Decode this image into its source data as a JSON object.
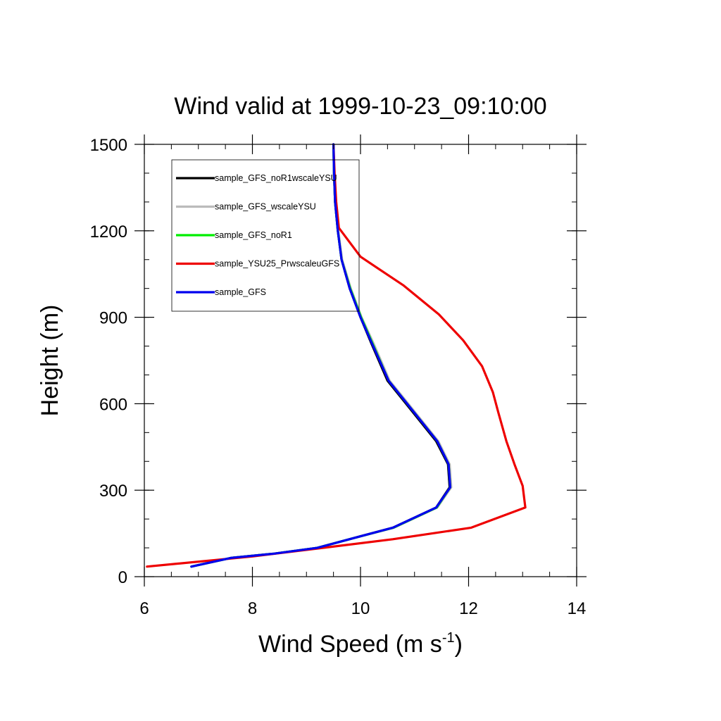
{
  "chart_data": {
    "type": "line",
    "title": "Wind valid at 1999-10-23_09:10:00",
    "xlabel": "Wind Speed (m s",
    "xlabel_superscript": "-1",
    "xlabel_suffix": ")",
    "ylabel": "Height (m)",
    "xlim": [
      6,
      14
    ],
    "ylim": [
      0,
      1500
    ],
    "x_ticks": [
      6,
      8,
      10,
      12,
      14
    ],
    "x_tick_labels": [
      "6",
      "8",
      "10",
      "12",
      "14"
    ],
    "y_ticks": [
      0,
      300,
      600,
      900,
      1200,
      1500
    ],
    "y_tick_labels": [
      "0",
      "300",
      "600",
      "900",
      "1200",
      "1500"
    ],
    "legend_position": "top-left",
    "series": [
      {
        "name": "sample_GFS_noR1wscaleYSU",
        "color": "#000000",
        "points": [
          [
            6.87,
            35
          ],
          [
            7.6,
            65
          ],
          [
            8.4,
            80
          ],
          [
            9.2,
            100
          ],
          [
            9.9,
            135
          ],
          [
            10.6,
            170
          ],
          [
            11.4,
            240
          ],
          [
            11.65,
            310
          ],
          [
            11.62,
            390
          ],
          [
            11.4,
            470
          ],
          [
            10.8,
            610
          ],
          [
            10.5,
            680
          ],
          [
            10.2,
            810
          ],
          [
            10.0,
            900
          ],
          [
            9.8,
            1000
          ],
          [
            9.65,
            1100
          ],
          [
            9.58,
            1200
          ],
          [
            9.53,
            1300
          ],
          [
            9.51,
            1400
          ],
          [
            9.5,
            1500
          ]
        ]
      },
      {
        "name": "sample_GFS_wscaleYSU",
        "color": "#bbbbbb",
        "points": [
          [
            6.87,
            35
          ],
          [
            7.6,
            65
          ],
          [
            8.4,
            80
          ],
          [
            9.2,
            100
          ],
          [
            9.9,
            135
          ],
          [
            10.62,
            170
          ],
          [
            11.42,
            240
          ],
          [
            11.68,
            310
          ],
          [
            11.65,
            390
          ],
          [
            11.44,
            470
          ],
          [
            10.84,
            610
          ],
          [
            10.54,
            680
          ],
          [
            10.24,
            810
          ],
          [
            10.02,
            900
          ],
          [
            9.82,
            1000
          ],
          [
            9.66,
            1100
          ],
          [
            9.59,
            1200
          ],
          [
            9.53,
            1300
          ],
          [
            9.51,
            1400
          ],
          [
            9.5,
            1500
          ]
        ]
      },
      {
        "name": "sample_GFS_noR1",
        "color": "#00ee00",
        "points": [
          [
            6.87,
            35
          ],
          [
            7.6,
            65
          ],
          [
            8.4,
            80
          ],
          [
            9.2,
            100
          ],
          [
            9.9,
            135
          ],
          [
            10.61,
            170
          ],
          [
            11.41,
            240
          ],
          [
            11.66,
            310
          ],
          [
            11.63,
            390
          ],
          [
            11.42,
            470
          ],
          [
            10.82,
            610
          ],
          [
            10.52,
            680
          ],
          [
            10.22,
            810
          ],
          [
            10.01,
            900
          ],
          [
            9.81,
            1000
          ],
          [
            9.65,
            1100
          ],
          [
            9.58,
            1200
          ],
          [
            9.53,
            1300
          ],
          [
            9.51,
            1400
          ],
          [
            9.5,
            1500
          ]
        ]
      },
      {
        "name": "sample_YSU25_PrwscaleuGFS",
        "color": "#ee0000",
        "points": [
          [
            6.05,
            35
          ],
          [
            8.0,
            70
          ],
          [
            9.3,
            100
          ],
          [
            10.6,
            130
          ],
          [
            12.05,
            170
          ],
          [
            13.05,
            240
          ],
          [
            13.0,
            315
          ],
          [
            12.85,
            390
          ],
          [
            12.7,
            470
          ],
          [
            12.55,
            570
          ],
          [
            12.45,
            640
          ],
          [
            12.25,
            730
          ],
          [
            11.9,
            820
          ],
          [
            11.45,
            910
          ],
          [
            10.8,
            1010
          ],
          [
            10.0,
            1110
          ],
          [
            9.6,
            1210
          ],
          [
            9.55,
            1300
          ],
          [
            9.52,
            1400
          ],
          [
            9.5,
            1500
          ]
        ]
      },
      {
        "name": "sample_GFS",
        "color": "#0000ee",
        "points": [
          [
            6.87,
            35
          ],
          [
            7.6,
            65
          ],
          [
            8.4,
            80
          ],
          [
            9.2,
            100
          ],
          [
            9.9,
            135
          ],
          [
            10.6,
            170
          ],
          [
            11.4,
            240
          ],
          [
            11.66,
            310
          ],
          [
            11.63,
            390
          ],
          [
            11.42,
            470
          ],
          [
            10.82,
            610
          ],
          [
            10.52,
            680
          ],
          [
            10.21,
            810
          ],
          [
            10.0,
            900
          ],
          [
            9.8,
            1000
          ],
          [
            9.65,
            1100
          ],
          [
            9.58,
            1200
          ],
          [
            9.53,
            1300
          ],
          [
            9.51,
            1400
          ],
          [
            9.5,
            1500
          ]
        ]
      }
    ]
  }
}
